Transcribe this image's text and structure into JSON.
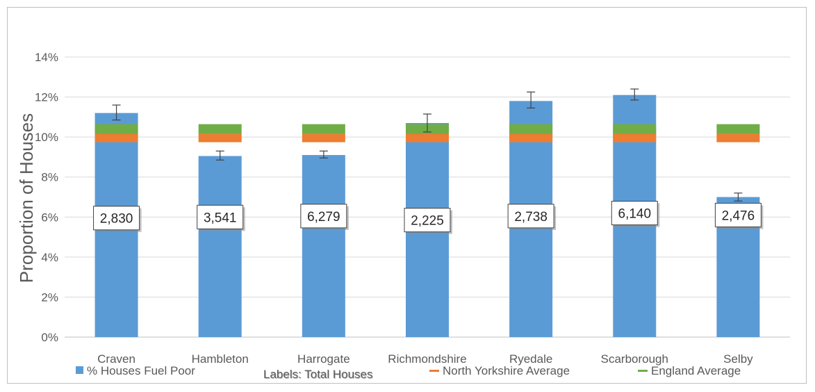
{
  "chart_data": {
    "type": "bar",
    "ylabel": "Proportion of Houses",
    "ylim": [
      0,
      14
    ],
    "yticks": [
      "0%",
      "2%",
      "4%",
      "6%",
      "8%",
      "10%",
      "12%",
      "14%"
    ],
    "categories": [
      "Craven",
      "Hambleton",
      "Harrogate",
      "Richmondshire",
      "Ryedale",
      "Scarborough",
      "Selby"
    ],
    "series": [
      {
        "name": "% Houses Fuel Poor",
        "color": "#5B9BD5",
        "values": [
          11.2,
          9.05,
          9.1,
          10.7,
          11.8,
          12.1,
          7.0
        ],
        "error_low": [
          10.85,
          8.85,
          8.95,
          10.25,
          11.45,
          11.85,
          6.8
        ],
        "error_high": [
          11.6,
          9.3,
          9.3,
          11.15,
          12.25,
          12.4,
          7.2
        ]
      },
      {
        "name": "North Yorkshire Average",
        "color": "#ED7D31",
        "values": [
          9.95,
          9.95,
          9.95,
          9.95,
          9.95,
          9.95,
          9.95
        ]
      },
      {
        "name": "England Average",
        "color": "#70AD47",
        "values": [
          10.4,
          10.4,
          10.4,
          10.4,
          10.4,
          10.4,
          10.4
        ]
      }
    ],
    "data_labels": [
      "2,830",
      "3,541",
      "6,279",
      "2,225",
      "2,738",
      "6,140",
      "2,476"
    ],
    "label_y": [
      5.95,
      6.0,
      6.05,
      5.85,
      6.05,
      6.2,
      6.1
    ],
    "legend": {
      "position": "bottom",
      "labels_note": "Labels: Total Houses"
    },
    "grid": true
  }
}
